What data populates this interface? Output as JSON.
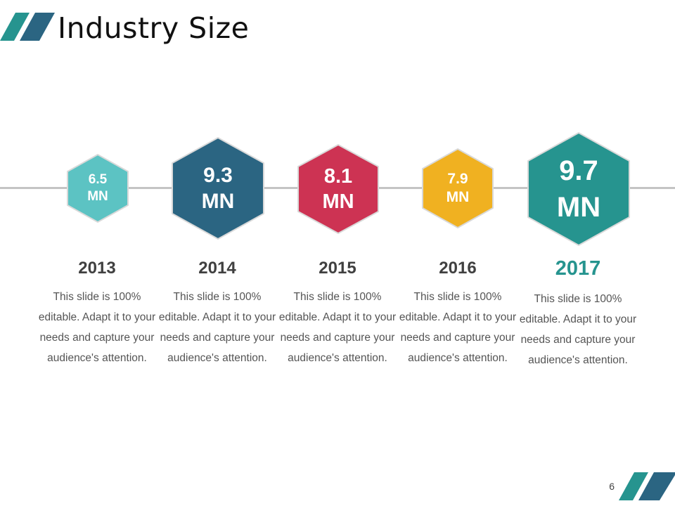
{
  "title": "Industry Size",
  "page_number": "6",
  "colors": {
    "teal_dark": "#26948f",
    "navy": "#2b6582",
    "light_teal": "#5cc3c3",
    "crimson": "#cd3353",
    "gold": "#f0b121",
    "year_highlight": "#26948f",
    "line": "#c4c4c4"
  },
  "items": [
    {
      "value": "6.5",
      "unit": "MN",
      "year": "2013",
      "desc": "This slide is 100% editable. Adapt it to your needs and capture your audience's attention."
    },
    {
      "value": "9.3",
      "unit": "MN",
      "year": "2014",
      "desc": "This slide is 100% editable. Adapt it to your needs and capture your audience's attention."
    },
    {
      "value": "8.1",
      "unit": "MN",
      "year": "2015",
      "desc": "This slide is 100% editable. Adapt it to your needs and capture your audience's attention."
    },
    {
      "value": "7.9",
      "unit": "MN",
      "year": "2016",
      "desc": "This slide is 100% editable. Adapt it to your needs and capture your audience's attention."
    },
    {
      "value": "9.7",
      "unit": "MN",
      "year": "2017",
      "desc": "This slide is 100% editable. Adapt it to your needs and capture your audience's attention."
    }
  ]
}
